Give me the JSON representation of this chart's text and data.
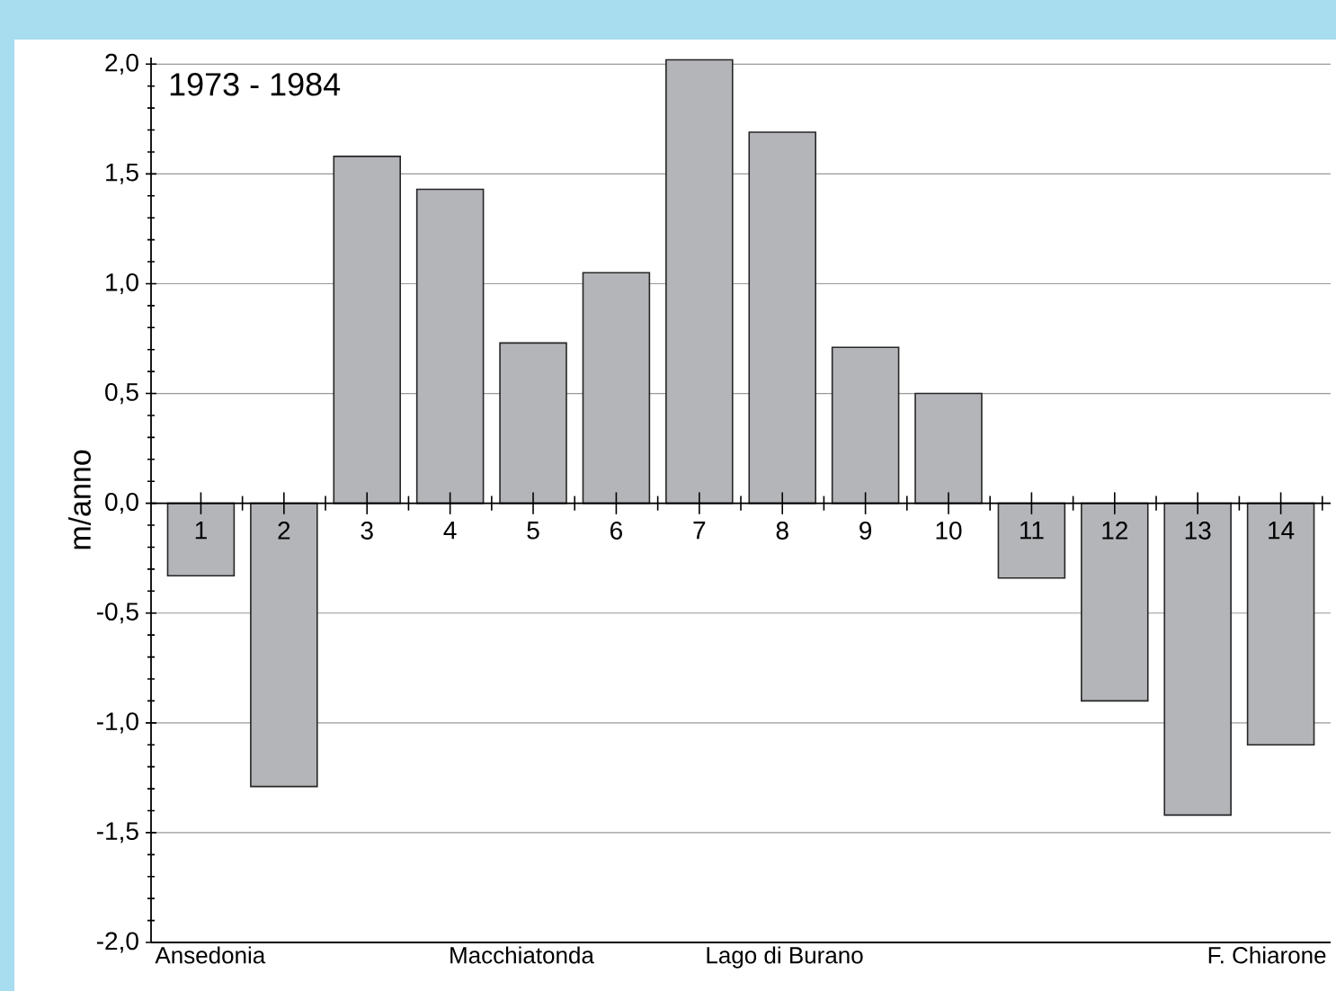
{
  "chart_data": {
    "type": "bar",
    "title": "1973 - 1984",
    "ylabel": "m/anno",
    "categories": [
      "1",
      "2",
      "3",
      "4",
      "5",
      "6",
      "7",
      "8",
      "9",
      "10",
      "11",
      "12",
      "13",
      "14"
    ],
    "values": [
      -0.33,
      -1.29,
      1.58,
      1.43,
      0.73,
      1.05,
      2.02,
      1.69,
      0.71,
      0.5,
      -0.34,
      -0.9,
      -1.42,
      -1.1
    ],
    "color": "#b4b5b9",
    "ylim": [
      -2.0,
      2.03
    ],
    "yticks": [
      {
        "value": -2.0,
        "label": "-2,0"
      },
      {
        "value": -1.5,
        "label": "-1,5"
      },
      {
        "value": -1.0,
        "label": "-1,0"
      },
      {
        "value": -0.5,
        "label": "-0,5"
      },
      {
        "value": 0.0,
        "label": "0,0"
      },
      {
        "value": 0.5,
        "label": "0,5"
      },
      {
        "value": 1.0,
        "label": "1,0"
      },
      {
        "value": 1.5,
        "label": "1,5"
      },
      {
        "value": 2.0,
        "label": "2,0"
      }
    ],
    "grid": "y",
    "annotations": [
      "Ansedonia",
      "Macchiatonda",
      "Lago di Burano",
      "F. Chiarone"
    ]
  }
}
